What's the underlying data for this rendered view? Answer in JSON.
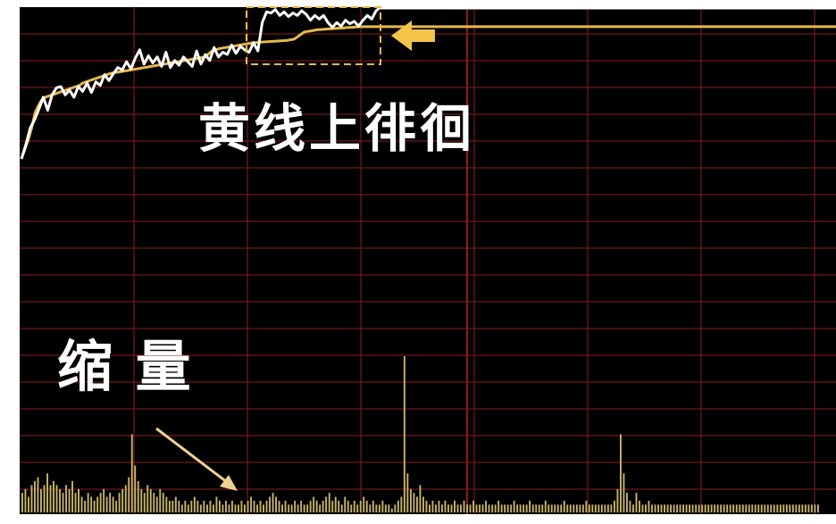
{
  "chart_data": [
    {
      "type": "line",
      "title": "",
      "xlabel": "",
      "ylabel": "",
      "grid": true,
      "series": [
        {
          "values": [
            0.8,
            2.0,
            3.4,
            4.1,
            5.0,
            6.0,
            4.9,
            6.2,
            6.8,
            6.9,
            6.2,
            6.6,
            6.0,
            6.9,
            6.5,
            7.2,
            6.4,
            7.3,
            7.0,
            7.9,
            7.4,
            8.0,
            8.5,
            8.3,
            9.0,
            8.4,
            9.3,
            10.0,
            8.8,
            9.5,
            8.9,
            9.4,
            8.6,
            9.8,
            8.5,
            9.1,
            8.7,
            9.4,
            9.0,
            8.6,
            9.9,
            8.8,
            9.6,
            9.1,
            10.2,
            9.4,
            9.8,
            9.6,
            10.4,
            9.7,
            10.3,
            10.0,
            9.8,
            10.6,
            9.9,
            12.3,
            13.2,
            13.1,
            13.4,
            12.9,
            13.2,
            12.8,
            13.1,
            12.9,
            13.3,
            13.0,
            12.5,
            12.9,
            12.6,
            12.9,
            12.3,
            11.9,
            12.3,
            12.0,
            12.5,
            12.2,
            12.4,
            12.0,
            12.5,
            12.9,
            12.6,
            13.3,
            13.6
          ]
        },
        {
          "values": [
            0.8,
            1.6,
            2.4,
            3.4,
            4.7,
            5.3,
            5.8,
            6.0,
            6.1,
            6.2,
            6.3,
            6.4,
            6.5,
            6.6,
            6.7,
            6.8,
            6.9,
            7.0,
            7.2,
            7.3,
            7.4,
            7.5,
            7.6,
            7.7,
            7.8,
            7.9,
            8.0,
            8.05,
            8.1,
            8.15,
            8.2,
            8.25,
            8.3,
            8.35,
            8.4,
            8.45,
            8.5,
            8.55,
            8.6,
            8.65,
            8.7,
            8.75,
            8.8,
            8.85,
            8.9,
            8.95,
            9.0,
            9.05,
            9.1,
            9.15,
            9.2,
            9.25,
            9.3,
            9.35,
            9.4,
            9.7,
            9.9,
            10.0,
            10.1,
            10.15,
            10.2,
            10.25,
            10.3,
            10.35,
            10.4,
            10.45,
            10.5,
            10.55,
            10.6,
            10.62,
            10.64,
            10.66,
            10.68,
            10.7,
            10.72,
            10.74,
            10.76,
            10.78,
            10.8,
            10.85,
            10.9,
            11.1,
            11.3,
            11.5,
            11.55,
            11.6,
            11.65,
            11.7,
            11.72,
            11.74,
            11.76,
            11.78,
            11.8,
            11.82,
            11.84,
            11.86,
            11.88,
            11.9,
            11.92,
            11.94,
            11.95,
            11.95,
            11.95,
            11.95,
            11.95,
            11.95,
            11.95,
            11.95,
            11.95,
            11.95,
            11.95,
            11.95,
            11.95,
            11.95,
            11.95,
            11.95,
            11.95,
            11.95,
            11.95,
            11.95,
            11.95,
            11.95,
            11.95,
            11.95,
            11.95,
            11.95,
            11.95,
            11.95,
            11.95,
            11.95,
            11.95,
            11.95,
            11.95,
            11.95,
            11.95,
            11.95,
            11.95,
            11.95,
            11.95,
            11.95,
            11.95,
            11.95,
            11.95,
            11.95,
            11.95,
            11.95,
            11.95,
            11.95,
            11.95,
            11.95,
            11.95,
            11.95,
            11.95,
            11.95,
            11.95,
            11.95,
            11.95,
            11.95,
            11.95,
            11.95,
            11.95,
            11.95,
            11.95,
            11.95,
            11.95,
            11.95,
            11.95,
            11.95,
            11.95,
            11.95,
            11.95,
            11.95,
            11.95,
            11.95,
            11.95,
            11.95,
            11.95,
            11.95,
            11.95,
            11.95,
            11.95,
            11.95,
            11.95,
            11.95,
            11.95,
            11.95,
            11.95,
            11.95,
            11.95,
            11.95,
            11.95,
            11.95,
            11.95,
            11.95,
            11.95,
            11.95,
            11.95,
            11.95,
            11.95,
            11.95,
            11.95,
            11.95,
            11.95,
            11.95,
            11.95,
            11.95,
            11.95,
            11.95,
            11.95,
            11.95,
            11.95,
            11.95,
            11.95,
            11.95,
            11.95,
            11.95,
            11.95,
            11.95,
            11.95,
            11.95,
            11.95,
            11.95,
            11.95,
            11.95,
            11.95,
            11.95,
            11.95,
            11.95,
            11.95,
            11.95,
            11.95,
            11.95,
            11.95,
            11.95,
            11.95,
            11.95,
            11.95,
            11.95,
            11.95,
            11.95,
            11.95,
            11.95,
            11.95,
            11.95,
            11.95,
            11.95,
            11.95,
            11.95,
            11.95,
            11.95
          ]
        }
      ],
      "colors": [
        "#ffffff",
        "#e8b84a"
      ]
    },
    {
      "type": "bar",
      "title": "",
      "xlabel": "",
      "ylabel": "",
      "values": [
        5,
        6,
        4,
        7,
        8,
        9,
        6,
        7,
        10,
        7,
        8,
        7,
        6,
        5,
        7,
        6,
        8,
        5,
        6,
        4,
        3,
        5,
        4,
        3,
        4,
        5,
        6,
        4,
        5,
        4,
        3,
        5,
        6,
        7,
        9,
        20,
        12,
        8,
        6,
        5,
        7,
        6,
        5,
        4,
        6,
        5,
        4,
        3,
        3,
        4,
        3,
        2,
        3,
        2,
        3,
        4,
        3,
        2,
        3,
        2,
        3,
        2,
        4,
        3,
        2,
        3,
        2,
        3,
        2,
        2,
        3,
        2,
        3,
        4,
        3,
        2,
        3,
        2,
        3,
        4,
        5,
        4,
        3,
        2,
        3,
        2,
        2,
        3,
        2,
        3,
        2,
        2,
        3,
        4,
        3,
        2,
        3,
        4,
        5,
        3,
        4,
        3,
        2,
        4,
        3,
        2,
        3,
        2,
        3,
        4,
        3,
        2,
        3,
        2,
        2,
        3,
        2,
        2,
        1,
        2,
        3,
        4,
        40,
        10,
        6,
        5,
        4,
        7,
        4,
        3,
        2,
        3,
        2,
        3,
        2,
        3,
        2,
        2,
        3,
        2,
        2,
        3,
        2,
        2,
        3,
        2,
        2,
        2,
        3,
        2,
        2,
        2,
        3,
        2,
        2,
        2,
        2,
        3,
        2,
        2,
        2,
        2,
        3,
        2,
        2,
        2,
        2,
        3,
        2,
        2,
        2,
        2,
        2,
        3,
        2,
        2,
        2,
        2,
        2,
        2,
        3,
        2,
        2,
        2,
        2,
        2,
        2,
        2,
        2,
        3,
        6,
        20,
        10,
        5,
        3,
        2,
        5,
        3,
        2,
        2,
        3,
        2,
        2,
        2,
        2,
        2,
        2,
        2,
        2,
        2,
        2,
        2,
        2,
        2,
        2,
        2,
        2,
        2,
        2,
        2,
        2,
        2,
        2,
        2,
        2,
        2,
        2,
        2,
        2,
        2,
        2,
        2,
        2,
        2,
        2,
        2,
        2,
        2,
        2,
        2,
        2,
        2,
        2,
        2,
        2,
        2,
        2,
        2,
        2,
        2,
        2,
        2,
        2,
        2,
        2
      ],
      "colors": [
        "#c7b36a"
      ]
    }
  ],
  "annotations": {
    "price_note": "黄线上徘徊",
    "volume_note": "缩 量"
  },
  "colors": {
    "background": "#000000",
    "grid": "#8b1e1e",
    "annotation": "#ffffff",
    "highlight": "#f4c44a"
  }
}
